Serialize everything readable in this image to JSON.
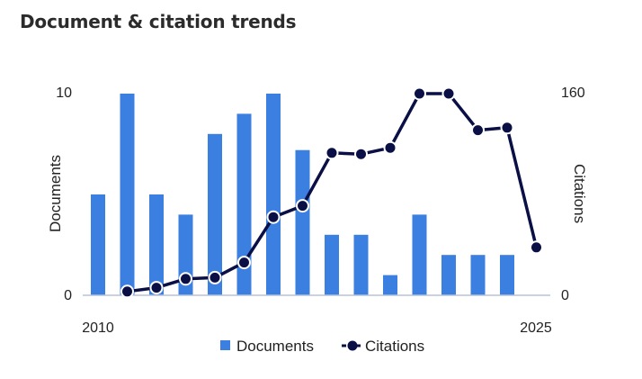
{
  "card": {
    "title": "Document & citation trends"
  },
  "chart_data": {
    "type": "bar+line",
    "x": [
      2010,
      2011,
      2012,
      2013,
      2014,
      2015,
      2016,
      2017,
      2018,
      2019,
      2020,
      2021,
      2022,
      2023,
      2024,
      2025
    ],
    "x_tick_labels": [
      "2010",
      "2025"
    ],
    "series": [
      {
        "name": "Documents",
        "type": "bar",
        "axis": "left",
        "color": "#3b7fe0",
        "values": [
          5,
          10,
          5,
          4,
          8,
          9,
          10,
          7.2,
          3,
          3,
          1,
          4,
          2,
          2,
          2,
          null
        ]
      },
      {
        "name": "Citations",
        "type": "line",
        "axis": "right",
        "color": "#0a0f45",
        "values": [
          null,
          3,
          6,
          13,
          14,
          26,
          62,
          71,
          113,
          112,
          117,
          160,
          160,
          131,
          133,
          38
        ]
      }
    ],
    "y_left": {
      "label": "Documents",
      "range": [
        0,
        10
      ],
      "tick_labels": [
        "0",
        "10"
      ]
    },
    "y_right": {
      "label": "Citations",
      "range": [
        0,
        160
      ],
      "tick_labels": [
        "0",
        "160"
      ]
    },
    "grid": false,
    "legend": "bottom-center"
  }
}
